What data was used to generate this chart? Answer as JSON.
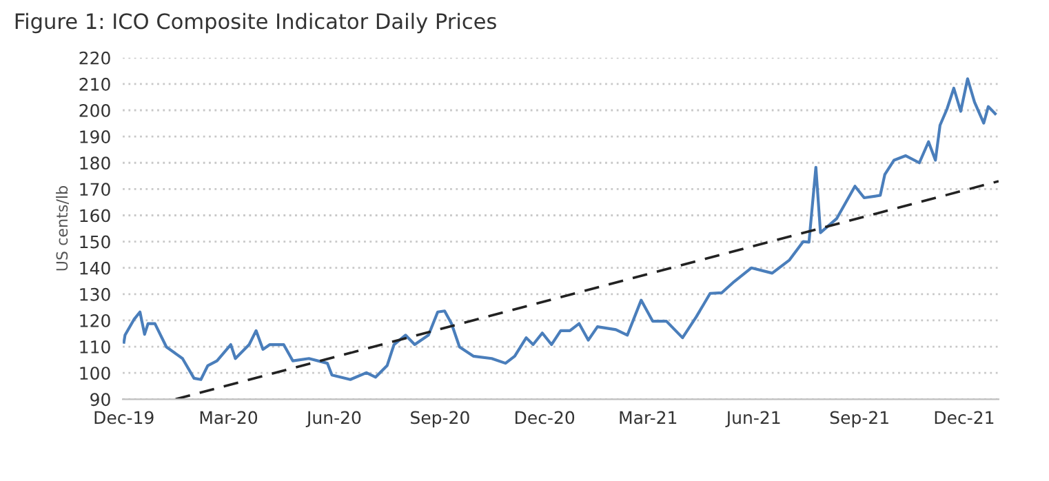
{
  "chart_data": {
    "type": "line",
    "title": "Figure 1: ICO Composite Indicator Daily Prices",
    "ylabel": "US cents/lb",
    "series": [
      {
        "color": "#4a7ebb",
        "line_style": "solid",
        "x": [
          "2019-12-01",
          "2019-12-02",
          "2019-12-10",
          "2019-12-15",
          "2019-12-19",
          "2019-12-22",
          "2019-12-28",
          "2020-01-07",
          "2020-01-21",
          "2020-01-31",
          "2020-02-06",
          "2020-02-12",
          "2020-02-20",
          "2020-03-03",
          "2020-03-07",
          "2020-03-19",
          "2020-03-25",
          "2020-03-31",
          "2020-04-06",
          "2020-04-18",
          "2020-04-26",
          "2020-05-10",
          "2020-05-26",
          "2020-05-30",
          "2020-06-15",
          "2020-06-29",
          "2020-07-07",
          "2020-07-17",
          "2020-07-23",
          "2020-08-02",
          "2020-08-10",
          "2020-08-22",
          "2020-08-30",
          "2020-09-05",
          "2020-09-11",
          "2020-09-18",
          "2020-09-30",
          "2020-10-16",
          "2020-10-28",
          "2020-11-05",
          "2020-11-15",
          "2020-11-21",
          "2020-11-29",
          "2020-12-07",
          "2020-12-15",
          "2020-12-23",
          "2020-12-31",
          "2021-01-08",
          "2021-01-16",
          "2021-02-01",
          "2021-02-11",
          "2021-02-23",
          "2021-03-05",
          "2021-03-17",
          "2021-03-31",
          "2021-04-12",
          "2021-04-24",
          "2021-05-04",
          "2021-05-15",
          "2021-05-30",
          "2021-06-17",
          "2021-07-02",
          "2021-07-14",
          "2021-07-19",
          "2021-07-25",
          "2021-07-29",
          "2021-08-12",
          "2021-08-28",
          "2021-09-05",
          "2021-09-19",
          "2021-09-23",
          "2021-10-01",
          "2021-10-11",
          "2021-10-23",
          "2021-10-31",
          "2021-11-06",
          "2021-11-10",
          "2021-11-16",
          "2021-11-22",
          "2021-11-28",
          "2021-12-04",
          "2021-12-10",
          "2021-12-18",
          "2021-12-22",
          "2021-12-28"
        ],
        "values": [
          111.7,
          114.4,
          120.5,
          123.2,
          114.7,
          118.8,
          118.8,
          109.9,
          105.5,
          98,
          97.5,
          102.8,
          104.6,
          110.8,
          105.5,
          110.8,
          116.1,
          109,
          110.8,
          110.8,
          104.6,
          105.5,
          103.7,
          99.2,
          97.5,
          100.1,
          98.4,
          102.8,
          110.8,
          114.4,
          110.8,
          114.4,
          123.2,
          123.6,
          118.8,
          109.9,
          106.4,
          105.5,
          103.7,
          106.4,
          113.4,
          110.8,
          115.2,
          110.8,
          116.1,
          116.1,
          118.8,
          112.5,
          117.6,
          116.5,
          114.4,
          127.7,
          119.7,
          119.7,
          113.4,
          121.4,
          130.3,
          130.5,
          134.8,
          140,
          138,
          143,
          150,
          149.8,
          178.3,
          153.4,
          158.7,
          171.1,
          166.7,
          167.6,
          175.6,
          181,
          182.7,
          180,
          188,
          181,
          194.3,
          200.4,
          208.4,
          199.6,
          212,
          203.1,
          195.1,
          201.4,
          198.7
        ]
      },
      {
        "type": "line",
        "color": "#222222",
        "line_style": "dashed",
        "x": [
          "2020-01-15",
          "2021-12-31"
        ],
        "values": [
          90,
          173
        ]
      }
    ],
    "xlim": [
      "2019-11-30",
      "2021-12-31"
    ],
    "xticks": [
      {
        "value": "2019-12-01",
        "label": "Dec-19"
      },
      {
        "value": "2020-03-01",
        "label": "Mar-20"
      },
      {
        "value": "2020-06-01",
        "label": "Jun-20"
      },
      {
        "value": "2020-09-01",
        "label": "Sep-20"
      },
      {
        "value": "2020-12-01",
        "label": "Dec-20"
      },
      {
        "value": "2021-03-01",
        "label": "Mar-21"
      },
      {
        "value": "2021-06-01",
        "label": "Jun-21"
      },
      {
        "value": "2021-09-01",
        "label": "Sep-21"
      },
      {
        "value": "2021-12-01",
        "label": "Dec-21"
      }
    ],
    "ylim": [
      90,
      220
    ],
    "yticks": [
      90,
      100,
      110,
      120,
      130,
      140,
      150,
      160,
      170,
      180,
      190,
      200,
      210,
      220
    ],
    "grid": "y",
    "legend": false
  }
}
